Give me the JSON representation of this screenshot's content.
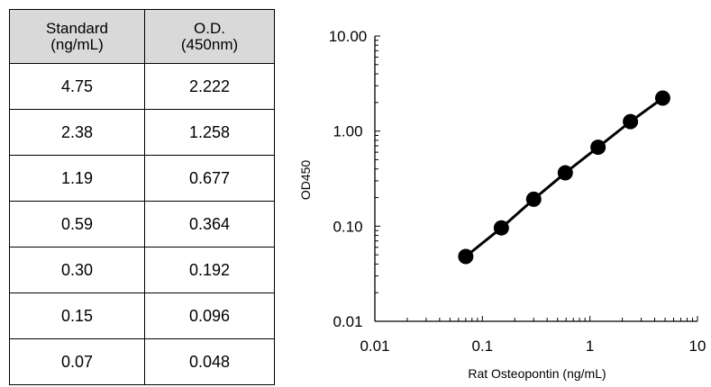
{
  "table": {
    "headers": [
      [
        "Standard",
        "(ng/mL)"
      ],
      [
        "O.D.",
        "(450nm)"
      ]
    ],
    "rows": [
      [
        "4.75",
        "2.222"
      ],
      [
        "2.38",
        "1.258"
      ],
      [
        "1.19",
        "0.677"
      ],
      [
        "0.59",
        "0.364"
      ],
      [
        "0.30",
        "0.192"
      ],
      [
        "0.15",
        "0.096"
      ],
      [
        "0.07",
        "0.048"
      ]
    ]
  },
  "chart_data": {
    "type": "scatter",
    "xlabel": "Rat Osteopontin (ng/mL)",
    "ylabel": "OD450",
    "x_scale": "log",
    "y_scale": "log",
    "xlim": [
      0.01,
      10
    ],
    "ylim": [
      0.01,
      10
    ],
    "x_tick_labels": [
      "0.01",
      "0.1",
      "1",
      "10"
    ],
    "y_tick_labels": [
      "0.01",
      "0.10",
      "1.00",
      "10.00"
    ],
    "grid": false,
    "series": [
      {
        "x": [
          0.07,
          0.15,
          0.3,
          0.59,
          1.19,
          2.38,
          4.75
        ],
        "y": [
          0.048,
          0.096,
          0.192,
          0.364,
          0.677,
          1.258,
          2.222
        ],
        "marker": "circle",
        "line": true,
        "color": "#000000"
      }
    ]
  }
}
